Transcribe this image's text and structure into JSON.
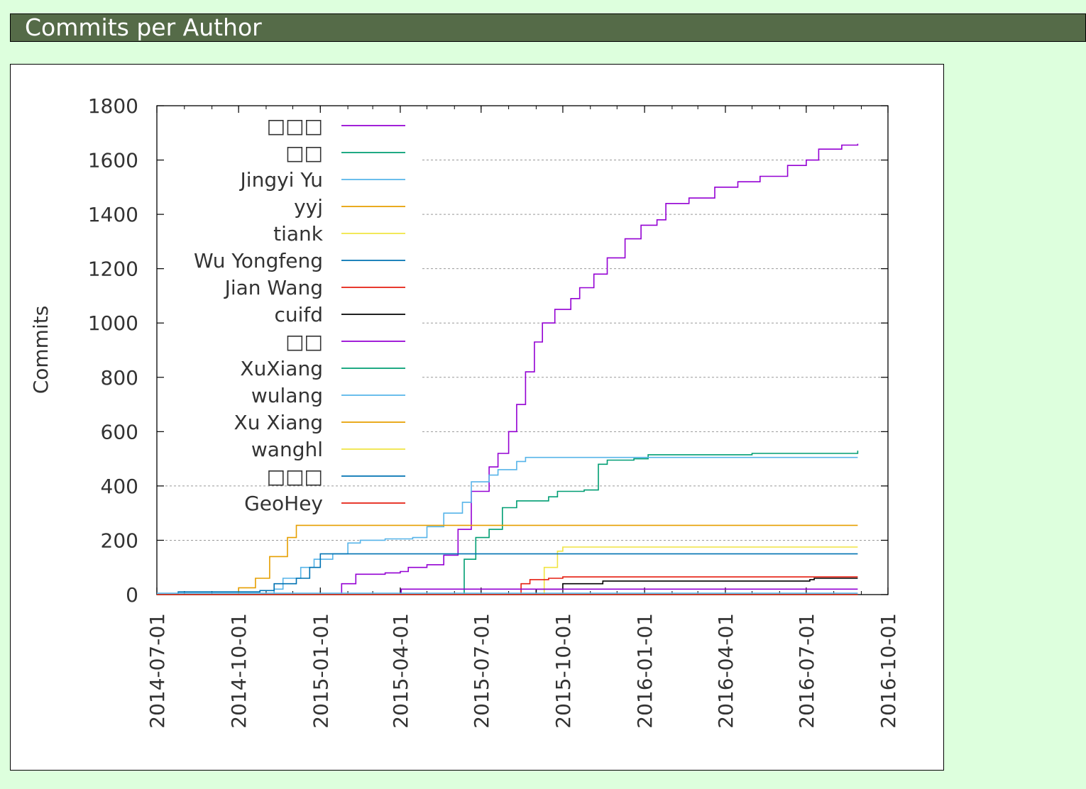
{
  "header": {
    "title": "Commits per Author"
  },
  "chart_data": {
    "type": "line",
    "title": "",
    "xlabel": "",
    "ylabel": "Commits",
    "xlim": [
      "2014-07-01",
      "2016-10-01"
    ],
    "ylim": [
      0,
      1800
    ],
    "xticks": [
      "2014-07-01",
      "2014-10-01",
      "2015-01-01",
      "2015-04-01",
      "2015-07-01",
      "2015-10-01",
      "2016-01-01",
      "2016-04-01",
      "2016-07-01",
      "2016-10-01"
    ],
    "yticks": [
      0,
      200,
      400,
      600,
      800,
      1000,
      1200,
      1400,
      1600,
      1800
    ],
    "grid": "horizontal dotted",
    "legend_position": "top-left",
    "series": [
      {
        "name": "□□□",
        "color": "#9400d3",
        "points": [
          [
            "2015-01-12",
            0
          ],
          [
            "2015-01-25",
            40
          ],
          [
            "2015-02-10",
            75
          ],
          [
            "2015-03-15",
            80
          ],
          [
            "2015-04-01",
            85
          ],
          [
            "2015-04-10",
            100
          ],
          [
            "2015-05-01",
            110
          ],
          [
            "2015-05-20",
            145
          ],
          [
            "2015-06-05",
            240
          ],
          [
            "2015-06-20",
            380
          ],
          [
            "2015-07-10",
            470
          ],
          [
            "2015-07-20",
            520
          ],
          [
            "2015-08-01",
            600
          ],
          [
            "2015-08-10",
            700
          ],
          [
            "2015-08-20",
            820
          ],
          [
            "2015-08-30",
            930
          ],
          [
            "2015-09-08",
            1000
          ],
          [
            "2015-09-22",
            1050
          ],
          [
            "2015-10-10",
            1090
          ],
          [
            "2015-10-20",
            1130
          ],
          [
            "2015-11-05",
            1180
          ],
          [
            "2015-11-20",
            1240
          ],
          [
            "2015-12-10",
            1310
          ],
          [
            "2015-12-28",
            1360
          ],
          [
            "2016-01-15",
            1380
          ],
          [
            "2016-01-25",
            1440
          ],
          [
            "2016-02-20",
            1460
          ],
          [
            "2016-03-20",
            1500
          ],
          [
            "2016-04-15",
            1520
          ],
          [
            "2016-05-10",
            1540
          ],
          [
            "2016-06-10",
            1580
          ],
          [
            "2016-07-01",
            1600
          ],
          [
            "2016-07-15",
            1640
          ],
          [
            "2016-08-10",
            1655
          ],
          [
            "2016-08-28",
            1660
          ]
        ]
      },
      {
        "name": "□□",
        "color": "#009e73",
        "points": [
          [
            "2015-06-07",
            0
          ],
          [
            "2015-06-12",
            130
          ],
          [
            "2015-06-25",
            210
          ],
          [
            "2015-07-10",
            240
          ],
          [
            "2015-07-25",
            320
          ],
          [
            "2015-08-10",
            345
          ],
          [
            "2015-09-15",
            360
          ],
          [
            "2015-09-25",
            380
          ],
          [
            "2015-10-25",
            385
          ],
          [
            "2015-11-10",
            480
          ],
          [
            "2015-11-20",
            495
          ],
          [
            "2015-12-20",
            500
          ],
          [
            "2016-01-05",
            515
          ],
          [
            "2016-05-01",
            520
          ],
          [
            "2016-08-28",
            530
          ]
        ]
      },
      {
        "name": "Jingyi Yu",
        "color": "#56b4e9",
        "points": [
          [
            "2014-08-15",
            0
          ],
          [
            "2014-11-10",
            20
          ],
          [
            "2014-11-20",
            60
          ],
          [
            "2014-12-10",
            100
          ],
          [
            "2014-12-25",
            130
          ],
          [
            "2015-01-15",
            150
          ],
          [
            "2015-02-01",
            190
          ],
          [
            "2015-02-15",
            200
          ],
          [
            "2015-03-15",
            205
          ],
          [
            "2015-04-15",
            210
          ],
          [
            "2015-05-01",
            250
          ],
          [
            "2015-05-20",
            300
          ],
          [
            "2015-06-10",
            340
          ],
          [
            "2015-06-20",
            415
          ],
          [
            "2015-07-10",
            440
          ],
          [
            "2015-07-20",
            460
          ],
          [
            "2015-08-10",
            490
          ],
          [
            "2015-08-20",
            505
          ],
          [
            "2016-08-28",
            505
          ]
        ]
      },
      {
        "name": "yyj",
        "color": "#e69f00",
        "points": [
          [
            "2014-09-20",
            0
          ],
          [
            "2014-10-01",
            25
          ],
          [
            "2014-10-20",
            60
          ],
          [
            "2014-11-05",
            140
          ],
          [
            "2014-11-25",
            210
          ],
          [
            "2014-12-05",
            255
          ],
          [
            "2016-08-28",
            255
          ]
        ]
      },
      {
        "name": "tiank",
        "color": "#f0e442",
        "points": [
          [
            "2015-08-20",
            0
          ],
          [
            "2015-09-10",
            100
          ],
          [
            "2015-09-25",
            160
          ],
          [
            "2015-10-01",
            175
          ],
          [
            "2016-08-28",
            175
          ]
        ]
      },
      {
        "name": "Wu Yongfeng",
        "color": "#0072b2",
        "points": [
          [
            "2014-07-10",
            0
          ],
          [
            "2014-07-25",
            10
          ],
          [
            "2014-09-20",
            10
          ],
          [
            "2014-10-25",
            15
          ],
          [
            "2014-11-10",
            40
          ],
          [
            "2014-12-05",
            60
          ],
          [
            "2014-12-20",
            100
          ],
          [
            "2015-01-01",
            150
          ],
          [
            "2015-07-05",
            150
          ],
          [
            "2015-07-15",
            150
          ],
          [
            "2016-08-28",
            150
          ]
        ]
      },
      {
        "name": "Jian Wang",
        "color": "#e51e10",
        "points": [
          [
            "2015-08-10",
            0
          ],
          [
            "2015-08-15",
            40
          ],
          [
            "2015-08-25",
            55
          ],
          [
            "2015-09-15",
            60
          ],
          [
            "2015-10-01",
            65
          ],
          [
            "2016-08-28",
            65
          ]
        ]
      },
      {
        "name": "cuifd",
        "color": "#000000",
        "points": [
          [
            "2015-08-20",
            0
          ],
          [
            "2015-09-01",
            20
          ],
          [
            "2015-10-01",
            40
          ],
          [
            "2015-11-15",
            50
          ],
          [
            "2016-07-05",
            55
          ],
          [
            "2016-07-10",
            60
          ],
          [
            "2016-08-28",
            60
          ]
        ]
      },
      {
        "name": "□□",
        "color": "#9400d3",
        "points": [
          [
            "2015-04-01",
            5
          ],
          [
            "2015-04-02",
            20
          ],
          [
            "2016-08-28",
            20
          ]
        ]
      },
      {
        "name": "XuXiang",
        "color": "#009e73",
        "points": [
          [
            "2014-07-01",
            0
          ],
          [
            "2016-08-28",
            0
          ]
        ]
      },
      {
        "name": "wulang",
        "color": "#56b4e9",
        "points": [
          [
            "2014-07-01",
            5
          ],
          [
            "2016-08-28",
            5
          ]
        ]
      },
      {
        "name": "Xu Xiang",
        "color": "#e69f00",
        "points": [
          [
            "2014-07-01",
            0
          ],
          [
            "2016-08-28",
            0
          ]
        ]
      },
      {
        "name": "wanghl",
        "color": "#f0e442",
        "points": [
          [
            "2014-07-01",
            0
          ],
          [
            "2016-08-28",
            0
          ]
        ]
      },
      {
        "name": "□□□",
        "color": "#0072b2",
        "points": [
          [
            "2014-07-01",
            0
          ],
          [
            "2016-08-28",
            0
          ]
        ]
      },
      {
        "name": "GeoHey",
        "color": "#e51e10",
        "points": [
          [
            "2014-07-01",
            0
          ],
          [
            "2016-08-28",
            0
          ]
        ]
      }
    ]
  }
}
